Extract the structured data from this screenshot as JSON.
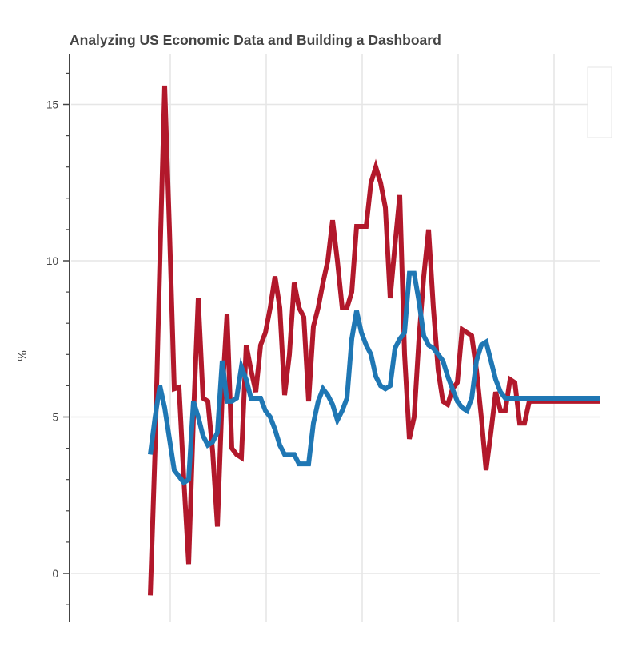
{
  "chart_data": {
    "type": "line",
    "title": "Analyzing US Economic Data and Building a Dashboard",
    "xlabel": "",
    "ylabel": "%",
    "ylim": [
      -1.5,
      16.5
    ],
    "yticks": [
      0,
      5,
      10,
      15
    ],
    "x_tick_labels": [],
    "grid": true,
    "legend": "top-right (entries not visible)",
    "series": [
      {
        "color": "#b2182b",
        "x": [
          1,
          2,
          3,
          4,
          5,
          6,
          7,
          8,
          9,
          10,
          11,
          12,
          13,
          14,
          15,
          16,
          17,
          18,
          19,
          20,
          21,
          22,
          23,
          24,
          25,
          26,
          27,
          28,
          29,
          30,
          31,
          32,
          33,
          34,
          35,
          36,
          37,
          38,
          39,
          40,
          41,
          42,
          43,
          44,
          45,
          46,
          47,
          48,
          49,
          50,
          51,
          52,
          53,
          54,
          55,
          56,
          57,
          58,
          59,
          60,
          61,
          62,
          63,
          64,
          65,
          66,
          67,
          68,
          69,
          70,
          71,
          72,
          73,
          74,
          75,
          76,
          77,
          78,
          79,
          80,
          81,
          82,
          83,
          84,
          85,
          86,
          87,
          88,
          89,
          90,
          91,
          92,
          93,
          94,
          95,
          96,
          97,
          98,
          99,
          100,
          101,
          102,
          103,
          104,
          105,
          106,
          107,
          108,
          109,
          110,
          111,
          112,
          113,
          114,
          115,
          116,
          117,
          118,
          119,
          120,
          121,
          122,
          123,
          124,
          125
        ],
        "values": [
          -0.7,
          4.0,
          10.0,
          15.6,
          11.0,
          5.9,
          5.95,
          3.0,
          0.3,
          5.0,
          8.8,
          5.6,
          5.5,
          3.9,
          1.5,
          5.7,
          8.3,
          4.0,
          3.8,
          3.7,
          7.3,
          6.5,
          5.8,
          7.3,
          7.7,
          8.5,
          9.5,
          8.5,
          5.7,
          7.0,
          9.3,
          8.5,
          8.2,
          5.5,
          7.9,
          8.5,
          9.3,
          10.0,
          11.3,
          10.0,
          8.5,
          8.5,
          9.0,
          11.1,
          11.1,
          11.1,
          12.5,
          13.0,
          12.5,
          11.7,
          8.8,
          10.5,
          12.1,
          7.0,
          4.3,
          5.0,
          7.5,
          9.5,
          11.0,
          8.5,
          6.5,
          5.5,
          5.4,
          5.9,
          6.1,
          7.8,
          7.7,
          7.6,
          6.5,
          5.0,
          3.3,
          4.5,
          5.8,
          5.2,
          5.2,
          6.2,
          6.1,
          4.8,
          4.8,
          5.5,
          5.5,
          5.5,
          5.5,
          5.5,
          5.5,
          5.5,
          5.5,
          5.5,
          5.5,
          5.5,
          5.5,
          5.5,
          5.5,
          5.5,
          5.5,
          5.5,
          5.5,
          5.5,
          5.5,
          5.5,
          5.5,
          5.5,
          5.5,
          5.5,
          5.5,
          5.5,
          5.5,
          5.5,
          5.5,
          5.5,
          5.5,
          5.5,
          5.5,
          5.5,
          5.5,
          5.5,
          5.5,
          5.5,
          5.5,
          5.5,
          5.5,
          5.5,
          5.5,
          5.5,
          5.5
        ]
      },
      {
        "color": "#1f77b4",
        "x": [
          1,
          2,
          3,
          4,
          5,
          6,
          7,
          8,
          9,
          10,
          11,
          12,
          13,
          14,
          15,
          16,
          17,
          18,
          19,
          20,
          21,
          22,
          23,
          24,
          25,
          26,
          27,
          28,
          29,
          30,
          31,
          32,
          33,
          34,
          35,
          36,
          37,
          38,
          39,
          40,
          41,
          42,
          43,
          44,
          45,
          46,
          47,
          48,
          49,
          50,
          51,
          52,
          53,
          54,
          55,
          56,
          57,
          58,
          59,
          60,
          61,
          62,
          63,
          64,
          65,
          66,
          67,
          68,
          69,
          70,
          71,
          72,
          73,
          74,
          75,
          76,
          77,
          78,
          79,
          80,
          81,
          82,
          83,
          84,
          85,
          86,
          87,
          88,
          89,
          90,
          91,
          92,
          93,
          94,
          95,
          96,
          97,
          98,
          99,
          100,
          101,
          102,
          103,
          104,
          105,
          106,
          107,
          108,
          109,
          110,
          111,
          112,
          113,
          114,
          115,
          116,
          117,
          118,
          119,
          120,
          121,
          122,
          123,
          124,
          125
        ],
        "values": [
          3.8,
          5.0,
          6.0,
          5.3,
          4.3,
          3.3,
          3.1,
          2.9,
          3.0,
          5.5,
          5.0,
          4.4,
          4.1,
          4.2,
          4.5,
          6.8,
          5.5,
          5.5,
          5.6,
          6.6,
          6.2,
          5.6,
          5.6,
          5.6,
          5.2,
          5.0,
          4.6,
          4.1,
          3.8,
          3.8,
          3.8,
          3.5,
          3.5,
          3.5,
          4.8,
          5.5,
          5.9,
          5.7,
          5.4,
          4.9,
          5.2,
          5.6,
          7.5,
          8.4,
          7.7,
          7.3,
          7.0,
          6.3,
          6.0,
          5.9,
          6.0,
          7.2,
          7.5,
          7.7,
          9.6,
          9.6,
          8.7,
          7.6,
          7.3,
          7.2,
          7.0,
          6.8,
          6.3,
          5.9,
          5.5,
          5.3,
          5.2,
          5.6,
          6.8,
          7.3,
          7.4,
          6.8,
          6.2,
          5.8,
          5.6,
          5.6,
          5.6,
          5.6,
          5.6,
          5.6,
          5.6,
          5.6,
          5.6,
          5.6,
          5.6,
          5.6,
          5.6,
          5.6,
          5.6,
          5.6,
          5.6,
          5.6,
          5.6,
          5.6,
          5.6,
          5.6,
          5.6,
          5.6,
          5.6,
          5.6,
          5.6,
          5.6,
          5.6,
          5.6,
          5.6,
          5.6,
          5.6,
          5.6,
          5.6,
          5.6,
          5.6,
          5.6,
          5.6,
          5.6,
          5.6,
          5.6,
          5.6,
          5.6,
          5.6,
          5.6,
          5.6,
          5.6,
          5.6,
          5.6,
          5.6
        ]
      }
    ]
  }
}
